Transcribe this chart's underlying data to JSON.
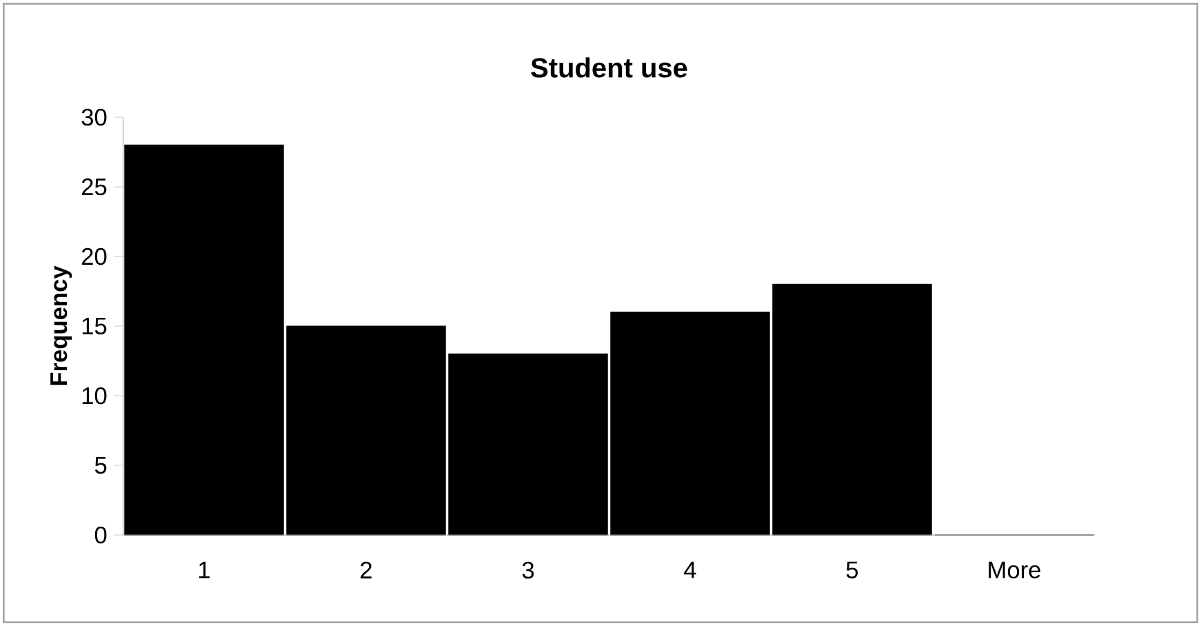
{
  "chart_data": {
    "type": "bar",
    "title": "Student use",
    "ylabel": "Frequency",
    "categories": [
      "1",
      "2",
      "3",
      "4",
      "5",
      "More"
    ],
    "values": [
      28,
      15,
      13,
      16,
      18,
      0
    ],
    "color": "#000000",
    "ylim": [
      0,
      30
    ],
    "yticks": [
      0,
      5,
      10,
      15,
      20,
      25,
      30
    ]
  }
}
